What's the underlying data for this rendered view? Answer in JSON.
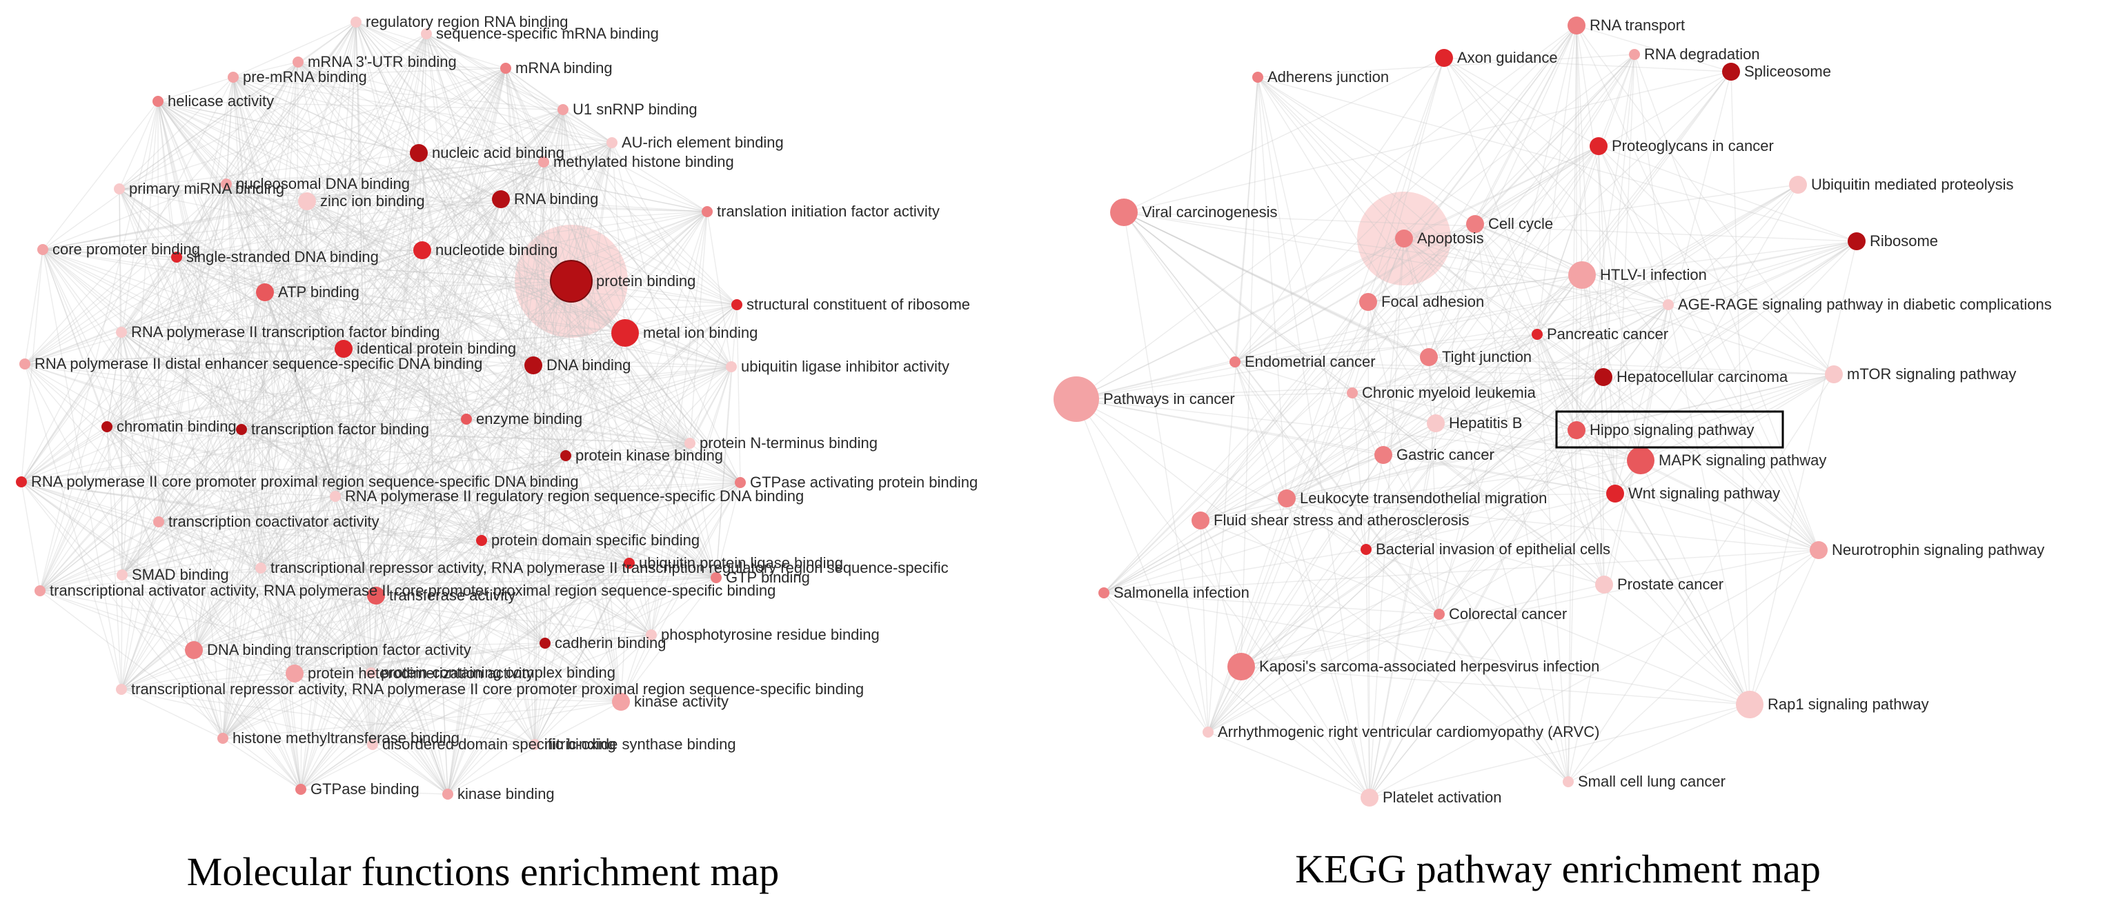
{
  "colors": {
    "edge": "#c4c4c4",
    "dark_red": "#b40f14",
    "red": "#e0252b",
    "medium_red": "#e8585c",
    "salmon": "#ee7f82",
    "pink": "#f3a3a5",
    "light_pink": "#f8c9ca",
    "halo": "#f9cdcd",
    "highlight_box": "#000000"
  },
  "panels": [
    {
      "id": "mf",
      "caption": "Molecular functions enrichment map",
      "hub_node": "protein binding",
      "edge_density": 0.55,
      "nodes": [
        {
          "label": "regulatory region RNA binding",
          "color": "light_pink",
          "size": 1
        },
        {
          "label": "sequence-specific mRNA binding",
          "color": "light_pink",
          "size": 1
        },
        {
          "label": "mRNA 3'-UTR binding",
          "color": "pink",
          "size": 1
        },
        {
          "label": "mRNA binding",
          "color": "salmon",
          "size": 1
        },
        {
          "label": "pre-mRNA binding",
          "color": "pink",
          "size": 1
        },
        {
          "label": "helicase activity",
          "color": "salmon",
          "size": 1
        },
        {
          "label": "U1 snRNP binding",
          "color": "pink",
          "size": 1
        },
        {
          "label": "nucleic acid binding",
          "color": "dark_red",
          "size": 2
        },
        {
          "label": "AU-rich element binding",
          "color": "light_pink",
          "size": 1
        },
        {
          "label": "methylated histone binding",
          "color": "pink",
          "size": 1
        },
        {
          "label": "nucleosomal DNA binding",
          "color": "pink",
          "size": 1
        },
        {
          "label": "primary miRNA binding",
          "color": "light_pink",
          "size": 1
        },
        {
          "label": "zinc ion binding",
          "color": "light_pink",
          "size": 2
        },
        {
          "label": "RNA binding",
          "color": "dark_red",
          "size": 2
        },
        {
          "label": "translation initiation factor activity",
          "color": "salmon",
          "size": 1
        },
        {
          "label": "core promoter binding",
          "color": "pink",
          "size": 1
        },
        {
          "label": "single-stranded DNA binding",
          "color": "red",
          "size": 1
        },
        {
          "label": "nucleotide binding",
          "color": "red",
          "size": 2
        },
        {
          "label": "protein binding",
          "color": "dark_red",
          "size": 5
        },
        {
          "label": "ATP binding",
          "color": "medium_red",
          "size": 2
        },
        {
          "label": "structural constituent of ribosome",
          "color": "red",
          "size": 1
        },
        {
          "label": "RNA polymerase II transcription factor binding",
          "color": "light_pink",
          "size": 1
        },
        {
          "label": "metal ion binding",
          "color": "red",
          "size": 3
        },
        {
          "label": "identical protein binding",
          "color": "red",
          "size": 2
        },
        {
          "label": "RNA polymerase II distal enhancer sequence-specific DNA binding",
          "color": "pink",
          "size": 1
        },
        {
          "label": "DNA binding",
          "color": "dark_red",
          "size": 2
        },
        {
          "label": "ubiquitin ligase inhibitor activity",
          "color": "light_pink",
          "size": 1
        },
        {
          "label": "enzyme binding",
          "color": "medium_red",
          "size": 1
        },
        {
          "label": "chromatin binding",
          "color": "dark_red",
          "size": 1
        },
        {
          "label": "transcription factor binding",
          "color": "dark_red",
          "size": 1
        },
        {
          "label": "protein N-terminus binding",
          "color": "light_pink",
          "size": 1
        },
        {
          "label": "protein kinase binding",
          "color": "dark_red",
          "size": 1
        },
        {
          "label": "RNA polymerase II core promoter proximal region sequence-specific DNA binding",
          "color": "red",
          "size": 1
        },
        {
          "label": "RNA polymerase II regulatory region sequence-specific DNA binding",
          "color": "light_pink",
          "size": 1
        },
        {
          "label": "GTPase activating protein binding",
          "color": "salmon",
          "size": 1
        },
        {
          "label": "transcription coactivator activity",
          "color": "pink",
          "size": 1
        },
        {
          "label": "protein domain specific binding",
          "color": "red",
          "size": 1
        },
        {
          "label": "ubiquitin protein ligase binding",
          "color": "red",
          "size": 1
        },
        {
          "label": "SMAD binding",
          "color": "light_pink",
          "size": 1
        },
        {
          "label": "transcriptional repressor activity, RNA polymerase II transcription regulatory region sequence-specific",
          "color": "light_pink",
          "size": 1
        },
        {
          "label": "GTP binding",
          "color": "salmon",
          "size": 1
        },
        {
          "label": "transferase activity",
          "color": "medium_red",
          "size": 2
        },
        {
          "label": "transcriptional activator activity, RNA polymerase II core promoter proximal region sequence-specific binding",
          "color": "pink",
          "size": 1
        },
        {
          "label": "phosphotyrosine residue binding",
          "color": "light_pink",
          "size": 1
        },
        {
          "label": "cadherin binding",
          "color": "dark_red",
          "size": 1
        },
        {
          "label": "DNA binding transcription factor activity",
          "color": "salmon",
          "size": 2
        },
        {
          "label": "protein heterodimerization activity",
          "color": "pink",
          "size": 2
        },
        {
          "label": "protein-containing complex binding",
          "color": "light_pink",
          "size": 1
        },
        {
          "label": "transcriptional repressor activity, RNA polymerase II core promoter proximal region sequence-specific binding",
          "color": "light_pink",
          "size": 1
        },
        {
          "label": "kinase activity",
          "color": "pink",
          "size": 2
        },
        {
          "label": "histone methyltransferase binding",
          "color": "pink",
          "size": 1
        },
        {
          "label": "disordered domain specific binding",
          "color": "light_pink",
          "size": 1
        },
        {
          "label": "nitric-oxide synthase binding",
          "color": "light_pink",
          "size": 1
        },
        {
          "label": "GTPase binding",
          "color": "salmon",
          "size": 1
        },
        {
          "label": "kinase binding",
          "color": "pink",
          "size": 1
        }
      ]
    },
    {
      "id": "kegg",
      "caption": "KEGG pathway enrichment map",
      "hub_node": "Apoptosis",
      "edge_density": 0.45,
      "highlighted": "Hippo signaling pathway",
      "nodes": [
        {
          "label": "RNA transport",
          "color": "salmon",
          "size": 2
        },
        {
          "label": "Axon guidance",
          "color": "red",
          "size": 2
        },
        {
          "label": "RNA degradation",
          "color": "pink",
          "size": 1
        },
        {
          "label": "Adherens junction",
          "color": "salmon",
          "size": 1
        },
        {
          "label": "Spliceosome",
          "color": "dark_red",
          "size": 2
        },
        {
          "label": "Proteoglycans in cancer",
          "color": "red",
          "size": 2
        },
        {
          "label": "Ubiquitin mediated proteolysis",
          "color": "light_pink",
          "size": 2
        },
        {
          "label": "Viral carcinogenesis",
          "color": "salmon",
          "size": 3
        },
        {
          "label": "Cell cycle",
          "color": "salmon",
          "size": 2
        },
        {
          "label": "Apoptosis",
          "color": "salmon",
          "size": 2
        },
        {
          "label": "Ribosome",
          "color": "dark_red",
          "size": 2
        },
        {
          "label": "HTLV-I infection",
          "color": "pink",
          "size": 3
        },
        {
          "label": "Focal adhesion",
          "color": "salmon",
          "size": 2
        },
        {
          "label": "AGE-RAGE signaling pathway in diabetic complications",
          "color": "light_pink",
          "size": 1
        },
        {
          "label": "Pancreatic cancer",
          "color": "red",
          "size": 1
        },
        {
          "label": "Endometrial cancer",
          "color": "salmon",
          "size": 1
        },
        {
          "label": "Tight junction",
          "color": "salmon",
          "size": 2
        },
        {
          "label": "Hepatocellular carcinoma",
          "color": "dark_red",
          "size": 2
        },
        {
          "label": "mTOR signaling pathway",
          "color": "light_pink",
          "size": 2
        },
        {
          "label": "Pathways in cancer",
          "color": "pink",
          "size": 5
        },
        {
          "label": "Chronic myeloid leukemia",
          "color": "pink",
          "size": 1
        },
        {
          "label": "Hepatitis B",
          "color": "light_pink",
          "size": 2
        },
        {
          "label": "Hippo signaling pathway",
          "color": "medium_red",
          "size": 2
        },
        {
          "label": "Gastric cancer",
          "color": "salmon",
          "size": 2
        },
        {
          "label": "MAPK signaling pathway",
          "color": "medium_red",
          "size": 3
        },
        {
          "label": "Leukocyte transendothelial migration",
          "color": "salmon",
          "size": 2
        },
        {
          "label": "Wnt signaling pathway",
          "color": "red",
          "size": 2
        },
        {
          "label": "Fluid shear stress and atherosclerosis",
          "color": "salmon",
          "size": 2
        },
        {
          "label": "Bacterial invasion of epithelial cells",
          "color": "red",
          "size": 1
        },
        {
          "label": "Neurotrophin signaling pathway",
          "color": "pink",
          "size": 2
        },
        {
          "label": "Salmonella infection",
          "color": "salmon",
          "size": 1
        },
        {
          "label": "Prostate cancer",
          "color": "light_pink",
          "size": 2
        },
        {
          "label": "Colorectal cancer",
          "color": "salmon",
          "size": 1
        },
        {
          "label": "Kaposi's sarcoma-associated herpesvirus infection",
          "color": "salmon",
          "size": 3
        },
        {
          "label": "Rap1 signaling pathway",
          "color": "light_pink",
          "size": 3
        },
        {
          "label": "Arrhythmogenic right ventricular cardiomyopathy (ARVC)",
          "color": "light_pink",
          "size": 1
        },
        {
          "label": "Small cell lung cancer",
          "color": "light_pink",
          "size": 1
        },
        {
          "label": "Platelet activation",
          "color": "light_pink",
          "size": 2
        }
      ]
    }
  ]
}
